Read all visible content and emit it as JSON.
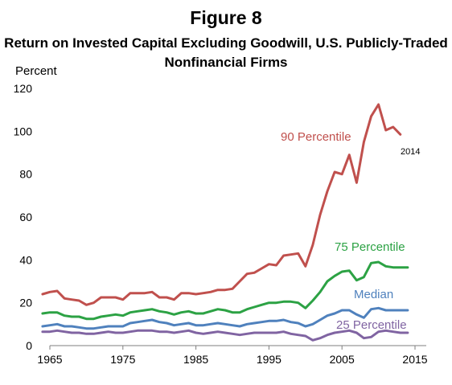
{
  "figure_label": "Figure 8",
  "chart_data": {
    "type": "line",
    "title": "Return on Invested Capital Excluding Goodwill, U.S. Publicly-Traded Nonfinancial Firms",
    "ylabel": "Percent",
    "xlabel": "",
    "xlim": [
      1965,
      2015
    ],
    "ylim": [
      0,
      120
    ],
    "x_ticks": [
      1965,
      1975,
      1985,
      1995,
      2005,
      2015
    ],
    "y_ticks": [
      0,
      20,
      40,
      60,
      80,
      100,
      120
    ],
    "grid": false,
    "legend": "inline labels",
    "annotations": [
      {
        "text": "2014",
        "x": 2014,
        "y": 98.5
      }
    ],
    "x": [
      1964,
      1965,
      1966,
      1967,
      1968,
      1969,
      1970,
      1971,
      1972,
      1973,
      1974,
      1975,
      1976,
      1977,
      1978,
      1979,
      1980,
      1981,
      1982,
      1983,
      1984,
      1985,
      1986,
      1987,
      1988,
      1989,
      1990,
      1991,
      1992,
      1993,
      1994,
      1995,
      1996,
      1997,
      1998,
      1999,
      2000,
      2001,
      2002,
      2003,
      2004,
      2005,
      2006,
      2007,
      2008,
      2009,
      2010,
      2011,
      2012,
      2013,
      2014
    ],
    "series": [
      {
        "name": "90 Percentile",
        "color": "#c0504d",
        "values": [
          24,
          25,
          25.5,
          22,
          21.5,
          21,
          19,
          20,
          22.5,
          22.5,
          22.5,
          21.5,
          24.5,
          24.5,
          24.5,
          25,
          22.5,
          22.5,
          21.5,
          24.5,
          24.5,
          24,
          24.5,
          25,
          26,
          26,
          26.5,
          30,
          33.5,
          34,
          36,
          38,
          37.5,
          42,
          42.5,
          43,
          37,
          47,
          61,
          72,
          81,
          80,
          89,
          76,
          95,
          107,
          112.5,
          100.5,
          102,
          98.5,
          null
        ]
      },
      {
        "name": "75 Percentile",
        "color": "#2ca244",
        "values": [
          15,
          15.5,
          15.5,
          14,
          13.5,
          13.5,
          12.5,
          12.5,
          13.5,
          14,
          14.5,
          14,
          15.5,
          16,
          16.5,
          17,
          16,
          15.5,
          14.5,
          15.5,
          16,
          15,
          15,
          16,
          17,
          16.5,
          15.5,
          15.5,
          17,
          18,
          19,
          20,
          20,
          20.5,
          20.5,
          20,
          17.5,
          21,
          25,
          30,
          32.5,
          34.5,
          35,
          30.5,
          32,
          38.5,
          39,
          37,
          36.5,
          36.5,
          36.5
        ]
      },
      {
        "name": "Median",
        "color": "#4f81bd",
        "values": [
          9,
          9.5,
          10,
          9,
          9,
          8.5,
          8,
          8,
          8.5,
          9,
          9,
          9,
          10.5,
          11,
          11.5,
          12,
          11,
          10.5,
          9.5,
          10,
          10.5,
          9.5,
          9.5,
          10,
          10.5,
          10,
          9.5,
          9,
          10,
          10.5,
          11,
          11.5,
          11.5,
          12,
          11,
          10.5,
          9,
          10,
          12,
          14,
          15,
          16.5,
          16.5,
          14.5,
          13,
          17,
          17.5,
          16.5,
          16.5,
          16.5,
          16.5
        ]
      },
      {
        "name": "25 Percentile",
        "color": "#8064a2",
        "values": [
          6.5,
          6.5,
          7,
          6.5,
          6,
          6,
          5.5,
          5.5,
          6,
          6.5,
          6,
          6,
          6.5,
          7,
          7,
          7,
          6.5,
          6.5,
          6,
          6.5,
          7,
          6,
          5.5,
          6,
          6.5,
          6,
          5.5,
          5,
          5.5,
          6,
          6,
          6,
          6,
          6.5,
          5.5,
          5,
          4.5,
          2.5,
          3.5,
          5,
          6,
          6.5,
          7,
          6,
          3.5,
          4,
          6.5,
          7,
          6.5,
          6,
          6
        ]
      }
    ]
  }
}
